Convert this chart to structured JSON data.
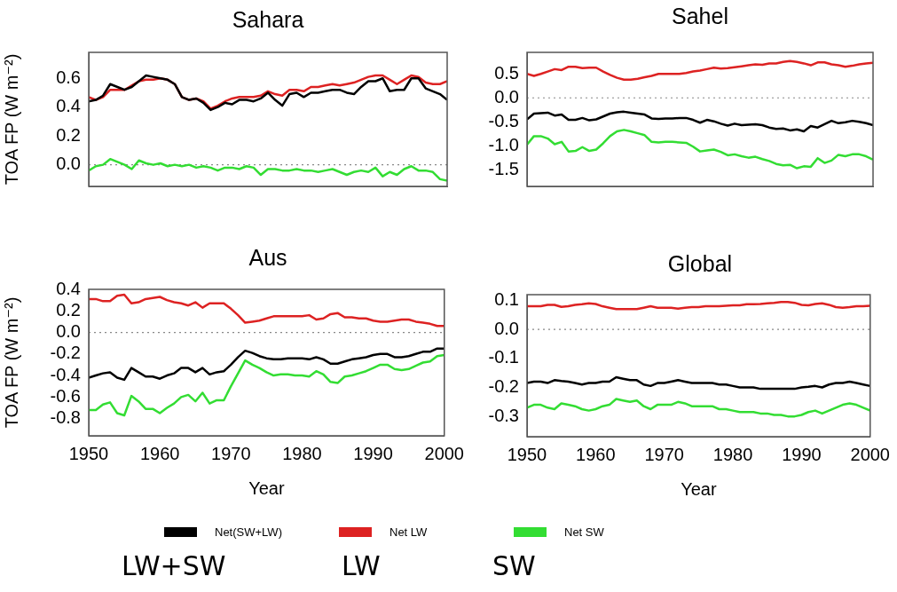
{
  "chart_data": [
    {
      "type": "line",
      "title": "Sahara",
      "ylabel": "TOA FP (W m⁻²)",
      "tick_labels": "y",
      "xlim": [
        1950,
        2000
      ],
      "xticks": [
        1950,
        1960,
        1970,
        1980,
        1990,
        2000
      ],
      "ylim": [
        -0.15,
        0.78
      ],
      "yticks": [
        {
          "value": 0,
          "label": "0.0"
        },
        {
          "value": 0.2,
          "label": "0.2"
        },
        {
          "value": 0.4,
          "label": "0.4"
        },
        {
          "value": 0.6,
          "label": "0.6"
        }
      ],
      "legend": "bottom",
      "marker": "none",
      "line_style": "solid",
      "grid": false,
      "ref_lines": [
        {
          "axis": "y",
          "value": 0,
          "color": "#888888",
          "line_style": "dotted"
        }
      ],
      "annotations": [
        "LW+SW",
        "LW",
        "SW"
      ],
      "x": [
        1950,
        1951,
        1952,
        1953,
        1954,
        1955,
        1956,
        1957,
        1958,
        1959,
        1960,
        1961,
        1962,
        1963,
        1964,
        1965,
        1966,
        1967,
        1968,
        1969,
        1970,
        1971,
        1972,
        1973,
        1974,
        1975,
        1976,
        1977,
        1978,
        1979,
        1980,
        1981,
        1982,
        1983,
        1984,
        1985,
        1986,
        1987,
        1988,
        1989,
        1990,
        1991,
        1992,
        1993,
        1994,
        1995,
        1996,
        1997,
        1998,
        1999,
        2000
      ],
      "series": [
        {
          "name": "Net(SW+LW)",
          "color": "#000000",
          "values": [
            0.44,
            0.45,
            0.48,
            0.56,
            0.54,
            0.52,
            0.54,
            0.58,
            0.62,
            0.61,
            0.6,
            0.59,
            0.56,
            0.47,
            0.45,
            0.46,
            0.43,
            0.38,
            0.4,
            0.43,
            0.42,
            0.45,
            0.45,
            0.44,
            0.46,
            0.5,
            0.45,
            0.41,
            0.49,
            0.5,
            0.47,
            0.5,
            0.5,
            0.51,
            0.52,
            0.52,
            0.5,
            0.49,
            0.54,
            0.58,
            0.58,
            0.6,
            0.51,
            0.52,
            0.52,
            0.6,
            0.6,
            0.53,
            0.51,
            0.49,
            0.45
          ]
        },
        {
          "name": "Net LW",
          "color": "#dd2222",
          "values": [
            0.47,
            0.45,
            0.47,
            0.52,
            0.52,
            0.52,
            0.55,
            0.58,
            0.59,
            0.59,
            0.6,
            0.59,
            0.56,
            0.47,
            0.45,
            0.46,
            0.44,
            0.39,
            0.41,
            0.44,
            0.46,
            0.47,
            0.47,
            0.47,
            0.48,
            0.51,
            0.49,
            0.48,
            0.52,
            0.52,
            0.51,
            0.54,
            0.54,
            0.55,
            0.56,
            0.55,
            0.56,
            0.57,
            0.59,
            0.61,
            0.62,
            0.62,
            0.59,
            0.56,
            0.59,
            0.62,
            0.61,
            0.57,
            0.56,
            0.56,
            0.58
          ]
        },
        {
          "name": "Net SW",
          "color": "#33dd33",
          "values": [
            -0.04,
            -0.01,
            0.0,
            0.04,
            0.02,
            0.0,
            -0.03,
            0.03,
            0.01,
            0.0,
            0.01,
            -0.01,
            0.0,
            -0.01,
            0.0,
            -0.02,
            -0.01,
            -0.02,
            -0.04,
            -0.02,
            -0.02,
            -0.03,
            -0.01,
            -0.02,
            -0.07,
            -0.03,
            -0.03,
            -0.04,
            -0.04,
            -0.03,
            -0.04,
            -0.04,
            -0.05,
            -0.04,
            -0.03,
            -0.05,
            -0.07,
            -0.05,
            -0.04,
            -0.05,
            -0.02,
            -0.08,
            -0.05,
            -0.07,
            -0.03,
            -0.01,
            -0.04,
            -0.04,
            -0.05,
            -0.1,
            -0.11
          ]
        }
      ]
    },
    {
      "type": "line",
      "title": "Sahel",
      "tick_labels": "y",
      "xlim": [
        1950,
        2000
      ],
      "xticks": [
        1950,
        1960,
        1970,
        1980,
        1990,
        2000
      ],
      "ylim": [
        -1.85,
        0.95
      ],
      "yticks": [
        {
          "value": -1.5,
          "label": "-1.5"
        },
        {
          "value": -1.0,
          "label": "-1.0"
        },
        {
          "value": -0.5,
          "label": "-0.5"
        },
        {
          "value": 0.0,
          "label": "0.0"
        },
        {
          "value": 0.5,
          "label": "0.5"
        }
      ],
      "marker": "none",
      "line_style": "solid",
      "grid": false,
      "ref_lines": [
        {
          "axis": "y",
          "value": 0,
          "color": "#888888",
          "line_style": "dotted"
        }
      ],
      "x": [
        1950,
        1951,
        1952,
        1953,
        1954,
        1955,
        1956,
        1957,
        1958,
        1959,
        1960,
        1961,
        1962,
        1963,
        1964,
        1965,
        1966,
        1967,
        1968,
        1969,
        1970,
        1971,
        1972,
        1973,
        1974,
        1975,
        1976,
        1977,
        1978,
        1979,
        1980,
        1981,
        1982,
        1983,
        1984,
        1985,
        1986,
        1987,
        1988,
        1989,
        1990,
        1991,
        1992,
        1993,
        1994,
        1995,
        1996,
        1997,
        1998,
        1999,
        2000
      ],
      "series": [
        {
          "color": "#000000",
          "values": [
            -0.45,
            -0.33,
            -0.32,
            -0.31,
            -0.37,
            -0.35,
            -0.46,
            -0.46,
            -0.42,
            -0.47,
            -0.45,
            -0.39,
            -0.33,
            -0.3,
            -0.29,
            -0.31,
            -0.33,
            -0.35,
            -0.43,
            -0.44,
            -0.43,
            -0.43,
            -0.42,
            -0.42,
            -0.46,
            -0.52,
            -0.46,
            -0.49,
            -0.54,
            -0.58,
            -0.54,
            -0.57,
            -0.56,
            -0.55,
            -0.57,
            -0.62,
            -0.65,
            -0.64,
            -0.68,
            -0.66,
            -0.7,
            -0.59,
            -0.62,
            -0.55,
            -0.48,
            -0.53,
            -0.51,
            -0.48,
            -0.5,
            -0.53,
            -0.57
          ]
        },
        {
          "color": "#dd2222",
          "values": [
            0.5,
            0.46,
            0.5,
            0.55,
            0.6,
            0.58,
            0.65,
            0.65,
            0.62,
            0.63,
            0.63,
            0.55,
            0.48,
            0.42,
            0.38,
            0.38,
            0.4,
            0.43,
            0.46,
            0.5,
            0.5,
            0.5,
            0.5,
            0.52,
            0.55,
            0.57,
            0.6,
            0.63,
            0.61,
            0.62,
            0.64,
            0.66,
            0.68,
            0.7,
            0.69,
            0.72,
            0.72,
            0.75,
            0.77,
            0.75,
            0.72,
            0.68,
            0.74,
            0.74,
            0.7,
            0.68,
            0.65,
            0.67,
            0.7,
            0.72,
            0.73
          ]
        },
        {
          "color": "#33dd33",
          "values": [
            -0.98,
            -0.8,
            -0.8,
            -0.85,
            -0.97,
            -0.92,
            -1.12,
            -1.11,
            -1.03,
            -1.11,
            -1.08,
            -0.95,
            -0.8,
            -0.7,
            -0.67,
            -0.7,
            -0.74,
            -0.78,
            -0.92,
            -0.93,
            -0.92,
            -0.92,
            -0.93,
            -0.94,
            -1.02,
            -1.12,
            -1.1,
            -1.08,
            -1.13,
            -1.2,
            -1.18,
            -1.22,
            -1.25,
            -1.23,
            -1.28,
            -1.32,
            -1.38,
            -1.41,
            -1.4,
            -1.47,
            -1.43,
            -1.44,
            -1.26,
            -1.36,
            -1.31,
            -1.19,
            -1.22,
            -1.18,
            -1.18,
            -1.22,
            -1.29
          ]
        }
      ]
    },
    {
      "type": "line",
      "title": "Aus",
      "xlabel": "Year",
      "ylabel": "TOA FP (W m⁻²)",
      "xlim": [
        1950,
        2000
      ],
      "xticks": [
        1950,
        1960,
        1970,
        1980,
        1990,
        2000
      ],
      "ylim": [
        -0.96,
        0.4
      ],
      "yticks": [
        {
          "value": -0.8,
          "label": "-0.8"
        },
        {
          "value": -0.6,
          "label": "-0.6"
        },
        {
          "value": -0.4,
          "label": "-0.4"
        },
        {
          "value": -0.2,
          "label": "-0.2"
        },
        {
          "value": 0.0,
          "label": "0.0"
        },
        {
          "value": 0.2,
          "label": "0.2"
        },
        {
          "value": 0.4,
          "label": "0.4"
        }
      ],
      "marker": "none",
      "line_style": "solid",
      "grid": false,
      "ref_lines": [
        {
          "axis": "y",
          "value": 0,
          "color": "#888888",
          "line_style": "dotted"
        }
      ],
      "x": [
        1950,
        1951,
        1952,
        1953,
        1954,
        1955,
        1956,
        1957,
        1958,
        1959,
        1960,
        1961,
        1962,
        1963,
        1964,
        1965,
        1966,
        1967,
        1968,
        1969,
        1970,
        1971,
        1972,
        1973,
        1974,
        1975,
        1976,
        1977,
        1978,
        1979,
        1980,
        1981,
        1982,
        1983,
        1984,
        1985,
        1986,
        1987,
        1988,
        1989,
        1990,
        1991,
        1992,
        1993,
        1994,
        1995,
        1996,
        1997,
        1998,
        1999,
        2000
      ],
      "series": [
        {
          "color": "#000000",
          "values": [
            -0.42,
            -0.4,
            -0.38,
            -0.37,
            -0.42,
            -0.44,
            -0.33,
            -0.37,
            -0.41,
            -0.41,
            -0.43,
            -0.4,
            -0.38,
            -0.33,
            -0.33,
            -0.37,
            -0.33,
            -0.39,
            -0.37,
            -0.36,
            -0.3,
            -0.23,
            -0.17,
            -0.19,
            -0.22,
            -0.24,
            -0.25,
            -0.25,
            -0.24,
            -0.24,
            -0.24,
            -0.25,
            -0.23,
            -0.25,
            -0.29,
            -0.29,
            -0.27,
            -0.25,
            -0.24,
            -0.23,
            -0.21,
            -0.2,
            -0.2,
            -0.23,
            -0.23,
            -0.22,
            -0.2,
            -0.18,
            -0.18,
            -0.15,
            -0.15
          ]
        },
        {
          "color": "#dd2222",
          "values": [
            0.31,
            0.31,
            0.29,
            0.29,
            0.34,
            0.35,
            0.27,
            0.28,
            0.31,
            0.32,
            0.33,
            0.3,
            0.28,
            0.27,
            0.25,
            0.28,
            0.23,
            0.27,
            0.27,
            0.27,
            0.22,
            0.16,
            0.09,
            0.1,
            0.11,
            0.13,
            0.15,
            0.15,
            0.15,
            0.15,
            0.15,
            0.16,
            0.12,
            0.13,
            0.17,
            0.18,
            0.14,
            0.14,
            0.13,
            0.13,
            0.11,
            0.1,
            0.1,
            0.11,
            0.12,
            0.12,
            0.1,
            0.09,
            0.08,
            0.06,
            0.06
          ]
        },
        {
          "color": "#33dd33",
          "values": [
            -0.72,
            -0.72,
            -0.67,
            -0.65,
            -0.75,
            -0.77,
            -0.59,
            -0.64,
            -0.71,
            -0.71,
            -0.75,
            -0.7,
            -0.66,
            -0.6,
            -0.58,
            -0.64,
            -0.56,
            -0.66,
            -0.63,
            -0.63,
            -0.5,
            -0.38,
            -0.26,
            -0.3,
            -0.33,
            -0.37,
            -0.4,
            -0.39,
            -0.39,
            -0.4,
            -0.4,
            -0.41,
            -0.36,
            -0.39,
            -0.46,
            -0.47,
            -0.41,
            -0.4,
            -0.38,
            -0.36,
            -0.33,
            -0.3,
            -0.3,
            -0.34,
            -0.35,
            -0.34,
            -0.31,
            -0.28,
            -0.27,
            -0.22,
            -0.21
          ]
        }
      ]
    },
    {
      "type": "line",
      "title": "Global",
      "xlabel": "Year",
      "xlim": [
        1950,
        2000
      ],
      "xticks": [
        1950,
        1960,
        1970,
        1980,
        1990,
        2000
      ],
      "ylim": [
        -0.37,
        0.12
      ],
      "yticks": [
        {
          "value": -0.3,
          "label": "-0.3"
        },
        {
          "value": -0.2,
          "label": "-0.2"
        },
        {
          "value": -0.1,
          "label": "-0.1"
        },
        {
          "value": 0.0,
          "label": "0.0"
        },
        0.1
      ],
      "marker": "none",
      "line_style": "solid",
      "grid": false,
      "ref_lines": [
        {
          "axis": "y",
          "value": 0,
          "color": "#888888",
          "line_style": "dotted"
        }
      ],
      "x": [
        1950,
        1951,
        1952,
        1953,
        1954,
        1955,
        1956,
        1957,
        1958,
        1959,
        1960,
        1961,
        1962,
        1963,
        1964,
        1965,
        1966,
        1967,
        1968,
        1969,
        1970,
        1971,
        1972,
        1973,
        1974,
        1975,
        1976,
        1977,
        1978,
        1979,
        1980,
        1981,
        1982,
        1983,
        1984,
        1985,
        1986,
        1987,
        1988,
        1989,
        1990,
        1991,
        1992,
        1993,
        1994,
        1995,
        1996,
        1997,
        1998,
        1999,
        2000
      ],
      "series": [
        {
          "color": "#000000",
          "values": [
            -0.185,
            -0.18,
            -0.18,
            -0.185,
            -0.175,
            -0.178,
            -0.18,
            -0.185,
            -0.19,
            -0.185,
            -0.185,
            -0.18,
            -0.18,
            -0.165,
            -0.17,
            -0.175,
            -0.175,
            -0.19,
            -0.195,
            -0.185,
            -0.185,
            -0.18,
            -0.175,
            -0.18,
            -0.185,
            -0.185,
            -0.185,
            -0.185,
            -0.19,
            -0.19,
            -0.195,
            -0.2,
            -0.2,
            -0.2,
            -0.205,
            -0.205,
            -0.205,
            -0.205,
            -0.205,
            -0.205,
            -0.2,
            -0.198,
            -0.195,
            -0.2,
            -0.19,
            -0.185,
            -0.185,
            -0.18,
            -0.185,
            -0.19,
            -0.195
          ]
        },
        {
          "color": "#dd2222",
          "values": [
            0.08,
            0.08,
            0.08,
            0.085,
            0.085,
            0.078,
            0.08,
            0.085,
            0.087,
            0.09,
            0.088,
            0.08,
            0.075,
            0.07,
            0.07,
            0.07,
            0.07,
            0.075,
            0.08,
            0.075,
            0.075,
            0.075,
            0.072,
            0.075,
            0.077,
            0.077,
            0.08,
            0.08,
            0.08,
            0.082,
            0.083,
            0.083,
            0.087,
            0.087,
            0.088,
            0.09,
            0.092,
            0.095,
            0.095,
            0.092,
            0.085,
            0.083,
            0.088,
            0.09,
            0.085,
            0.077,
            0.075,
            0.077,
            0.08,
            0.08,
            0.082
          ]
        },
        {
          "color": "#33dd33",
          "values": [
            -0.27,
            -0.26,
            -0.26,
            -0.27,
            -0.275,
            -0.255,
            -0.26,
            -0.265,
            -0.275,
            -0.28,
            -0.275,
            -0.265,
            -0.26,
            -0.24,
            -0.245,
            -0.25,
            -0.245,
            -0.265,
            -0.275,
            -0.26,
            -0.26,
            -0.26,
            -0.25,
            -0.255,
            -0.265,
            -0.265,
            -0.265,
            -0.265,
            -0.275,
            -0.275,
            -0.28,
            -0.285,
            -0.285,
            -0.285,
            -0.29,
            -0.29,
            -0.295,
            -0.295,
            -0.3,
            -0.3,
            -0.295,
            -0.285,
            -0.28,
            -0.29,
            -0.28,
            -0.27,
            -0.26,
            -0.255,
            -0.26,
            -0.27,
            -0.28
          ]
        }
      ]
    }
  ]
}
